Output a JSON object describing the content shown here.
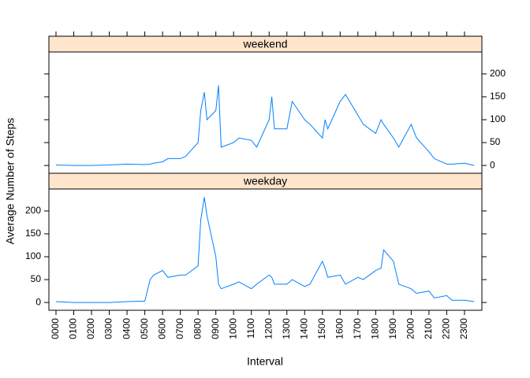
{
  "chart_data": {
    "type": "line",
    "xlabel": "Interval",
    "ylabel": "Average Number of Steps",
    "x": [
      0,
      100,
      200,
      300,
      400,
      500,
      530,
      550,
      600,
      630,
      700,
      730,
      800,
      815,
      835,
      850,
      900,
      915,
      930,
      1000,
      1030,
      1100,
      1130,
      1200,
      1215,
      1230,
      1300,
      1330,
      1400,
      1430,
      1500,
      1515,
      1530,
      1600,
      1630,
      1700,
      1730,
      1800,
      1830,
      1845,
      1900,
      1930,
      2000,
      2030,
      2100,
      2130,
      2200,
      2230,
      2300,
      2355
    ],
    "series": [
      {
        "name": "weekend",
        "color": "#0080ff",
        "values": [
          1,
          0,
          0,
          1,
          3,
          2,
          3,
          5,
          8,
          15,
          15,
          20,
          50,
          120,
          160,
          100,
          120,
          175,
          40,
          50,
          60,
          55,
          40,
          100,
          150,
          80,
          80,
          140,
          100,
          90,
          60,
          100,
          80,
          140,
          155,
          110,
          90,
          70,
          100,
          90,
          60,
          40,
          90,
          60,
          30,
          15,
          3,
          3,
          5,
          0
        ]
      },
      {
        "name": "weekday",
        "color": "#0080ff",
        "values": [
          2,
          0,
          0,
          0,
          2,
          3,
          50,
          60,
          70,
          55,
          60,
          60,
          80,
          180,
          230,
          190,
          100,
          40,
          30,
          40,
          45,
          30,
          40,
          60,
          55,
          40,
          40,
          50,
          35,
          40,
          90,
          75,
          55,
          60,
          40,
          55,
          50,
          70,
          75,
          115,
          90,
          40,
          30,
          20,
          25,
          10,
          15,
          5,
          5,
          2
        ]
      }
    ],
    "xlim": [
      -40,
      2398
    ],
    "xticks": [
      {
        "value": 0,
        "label": "0000"
      },
      {
        "value": 100,
        "label": "0100"
      },
      {
        "value": 200,
        "label": "0200"
      },
      {
        "value": 300,
        "label": "0300"
      },
      {
        "value": 400,
        "label": "0400"
      },
      {
        "value": 500,
        "label": "0500"
      },
      {
        "value": 600,
        "label": "0600"
      },
      {
        "value": 700,
        "label": "0700"
      },
      {
        "value": 800,
        "label": "0800"
      },
      {
        "value": 900,
        "label": "0900"
      },
      {
        "value": 1000,
        "label": "1000"
      },
      {
        "value": 1100,
        "label": "1100"
      },
      {
        "value": 1200,
        "label": "1200"
      },
      {
        "value": 1300,
        "label": "1300"
      },
      {
        "value": 1400,
        "label": "1400"
      },
      {
        "value": 1500,
        "label": "1500"
      },
      {
        "value": 1600,
        "label": "1600"
      },
      {
        "value": 1700,
        "label": "1700"
      },
      {
        "value": 1800,
        "label": "1800"
      },
      {
        "value": 1900,
        "label": "1900"
      },
      {
        "value": 2000,
        "label": "2000"
      },
      {
        "value": 2100,
        "label": "2100"
      },
      {
        "value": 2200,
        "label": "2200"
      },
      {
        "value": 2300,
        "label": "2300"
      }
    ],
    "ylim": [
      -17,
      248
    ],
    "yticks": [
      0,
      50,
      100,
      150,
      200
    ]
  }
}
